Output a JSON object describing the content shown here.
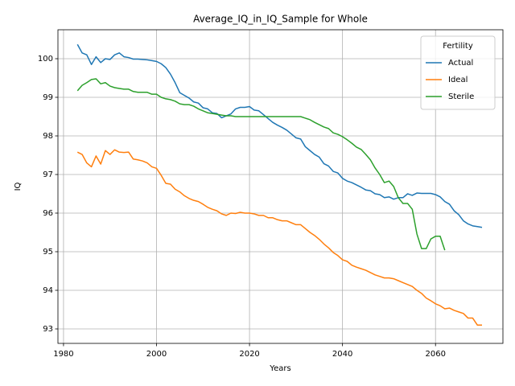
{
  "chart_data": {
    "type": "line",
    "title": "Average_IQ_in_IQ_Sample for Whole",
    "x_label": "Years",
    "y_label": "IQ",
    "legend_title": "Fertility",
    "legend_position": "upper right",
    "grid": true,
    "x": [
      1983,
      1984,
      1985,
      1986,
      1987,
      1988,
      1989,
      1990,
      1991,
      1992,
      1993,
      1994,
      1995,
      1996,
      1997,
      1998,
      1999,
      2000,
      2001,
      2002,
      2003,
      2004,
      2005,
      2006,
      2007,
      2008,
      2009,
      2010,
      2011,
      2012,
      2013,
      2014,
      2015,
      2016,
      2017,
      2018,
      2019,
      2020,
      2021,
      2022,
      2023,
      2024,
      2025,
      2026,
      2027,
      2028,
      2029,
      2030,
      2031,
      2032,
      2033,
      2034,
      2035,
      2036,
      2037,
      2038,
      2039,
      2040,
      2041,
      2042,
      2043,
      2044,
      2045,
      2046,
      2047,
      2048,
      2049,
      2050,
      2051,
      2052,
      2053,
      2054,
      2055,
      2056,
      2057,
      2058,
      2059,
      2060,
      2061,
      2062,
      2063,
      2064,
      2065,
      2066,
      2067,
      2068,
      2069,
      2070
    ],
    "series": [
      {
        "name": "Actual",
        "color": "#1f77b4",
        "values": [
          100.37,
          100.15,
          100.1,
          99.85,
          100.05,
          99.9,
          100.0,
          99.98,
          100.1,
          100.15,
          100.05,
          100.03,
          99.99,
          99.99,
          99.98,
          99.97,
          99.95,
          99.93,
          99.87,
          99.77,
          99.6,
          99.38,
          99.12,
          99.05,
          98.98,
          98.88,
          98.85,
          98.73,
          98.7,
          98.6,
          98.58,
          98.47,
          98.52,
          98.57,
          98.7,
          98.74,
          98.74,
          98.76,
          98.67,
          98.65,
          98.55,
          98.45,
          98.35,
          98.28,
          98.22,
          98.15,
          98.05,
          97.95,
          97.92,
          97.72,
          97.62,
          97.52,
          97.45,
          97.28,
          97.22,
          97.08,
          97.04,
          96.9,
          96.83,
          96.79,
          96.73,
          96.67,
          96.6,
          96.58,
          96.5,
          96.48,
          96.4,
          96.42,
          96.36,
          96.4,
          96.4,
          96.5,
          96.46,
          96.52,
          96.51,
          96.51,
          96.51,
          96.48,
          96.42,
          96.3,
          96.23,
          96.06,
          95.96,
          95.8,
          95.72,
          95.67,
          95.65,
          95.63
        ]
      },
      {
        "name": "Ideal",
        "color": "#ff7f0e",
        "values": [
          97.58,
          97.52,
          97.3,
          97.2,
          97.48,
          97.27,
          97.62,
          97.52,
          97.64,
          97.58,
          97.57,
          97.58,
          97.4,
          97.38,
          97.35,
          97.3,
          97.2,
          97.16,
          96.98,
          96.77,
          96.75,
          96.62,
          96.55,
          96.45,
          96.38,
          96.33,
          96.3,
          96.23,
          96.15,
          96.1,
          96.06,
          95.98,
          95.94,
          96.0,
          95.99,
          96.02,
          96.0,
          96.0,
          95.98,
          95.94,
          95.94,
          95.88,
          95.88,
          95.83,
          95.8,
          95.8,
          95.75,
          95.7,
          95.7,
          95.6,
          95.5,
          95.42,
          95.32,
          95.2,
          95.1,
          94.98,
          94.9,
          94.79,
          94.75,
          94.65,
          94.6,
          94.56,
          94.52,
          94.46,
          94.4,
          94.36,
          94.32,
          94.32,
          94.3,
          94.25,
          94.2,
          94.15,
          94.1,
          94.0,
          93.92,
          93.8,
          93.73,
          93.65,
          93.6,
          93.52,
          93.54,
          93.48,
          93.44,
          93.4,
          93.28,
          93.28,
          93.1,
          93.1
        ]
      },
      {
        "name": "Sterile",
        "color": "#2ca02c",
        "values": [
          99.17,
          99.31,
          99.38,
          99.46,
          99.48,
          99.35,
          99.38,
          99.29,
          99.25,
          99.23,
          99.21,
          99.21,
          99.15,
          99.13,
          99.13,
          99.13,
          99.08,
          99.08,
          99.0,
          98.96,
          98.94,
          98.9,
          98.83,
          98.81,
          98.81,
          98.77,
          98.7,
          98.65,
          98.6,
          98.58,
          98.56,
          98.54,
          98.52,
          98.52,
          98.5,
          98.5,
          98.5,
          98.5,
          98.5,
          98.5,
          98.5,
          98.5,
          98.5,
          98.5,
          98.5,
          98.5,
          98.5,
          98.5,
          98.5,
          98.46,
          98.42,
          98.35,
          98.29,
          98.23,
          98.19,
          98.08,
          98.04,
          97.98,
          97.9,
          97.81,
          97.71,
          97.65,
          97.52,
          97.38,
          97.17,
          97.0,
          96.79,
          96.83,
          96.69,
          96.4,
          96.25,
          96.25,
          96.1,
          95.46,
          95.08,
          95.08,
          95.33,
          95.4,
          95.4,
          95.04,
          null,
          null,
          null,
          null,
          null,
          null,
          null,
          null
        ]
      }
    ],
    "xlim": [
      1978.8,
      2074.5
    ],
    "xticks": [
      1980,
      2000,
      2020,
      2040,
      2060
    ],
    "ylim": [
      92.625,
      100.75
    ],
    "yticks": [
      93,
      94,
      95,
      96,
      97,
      98,
      99,
      100
    ]
  }
}
